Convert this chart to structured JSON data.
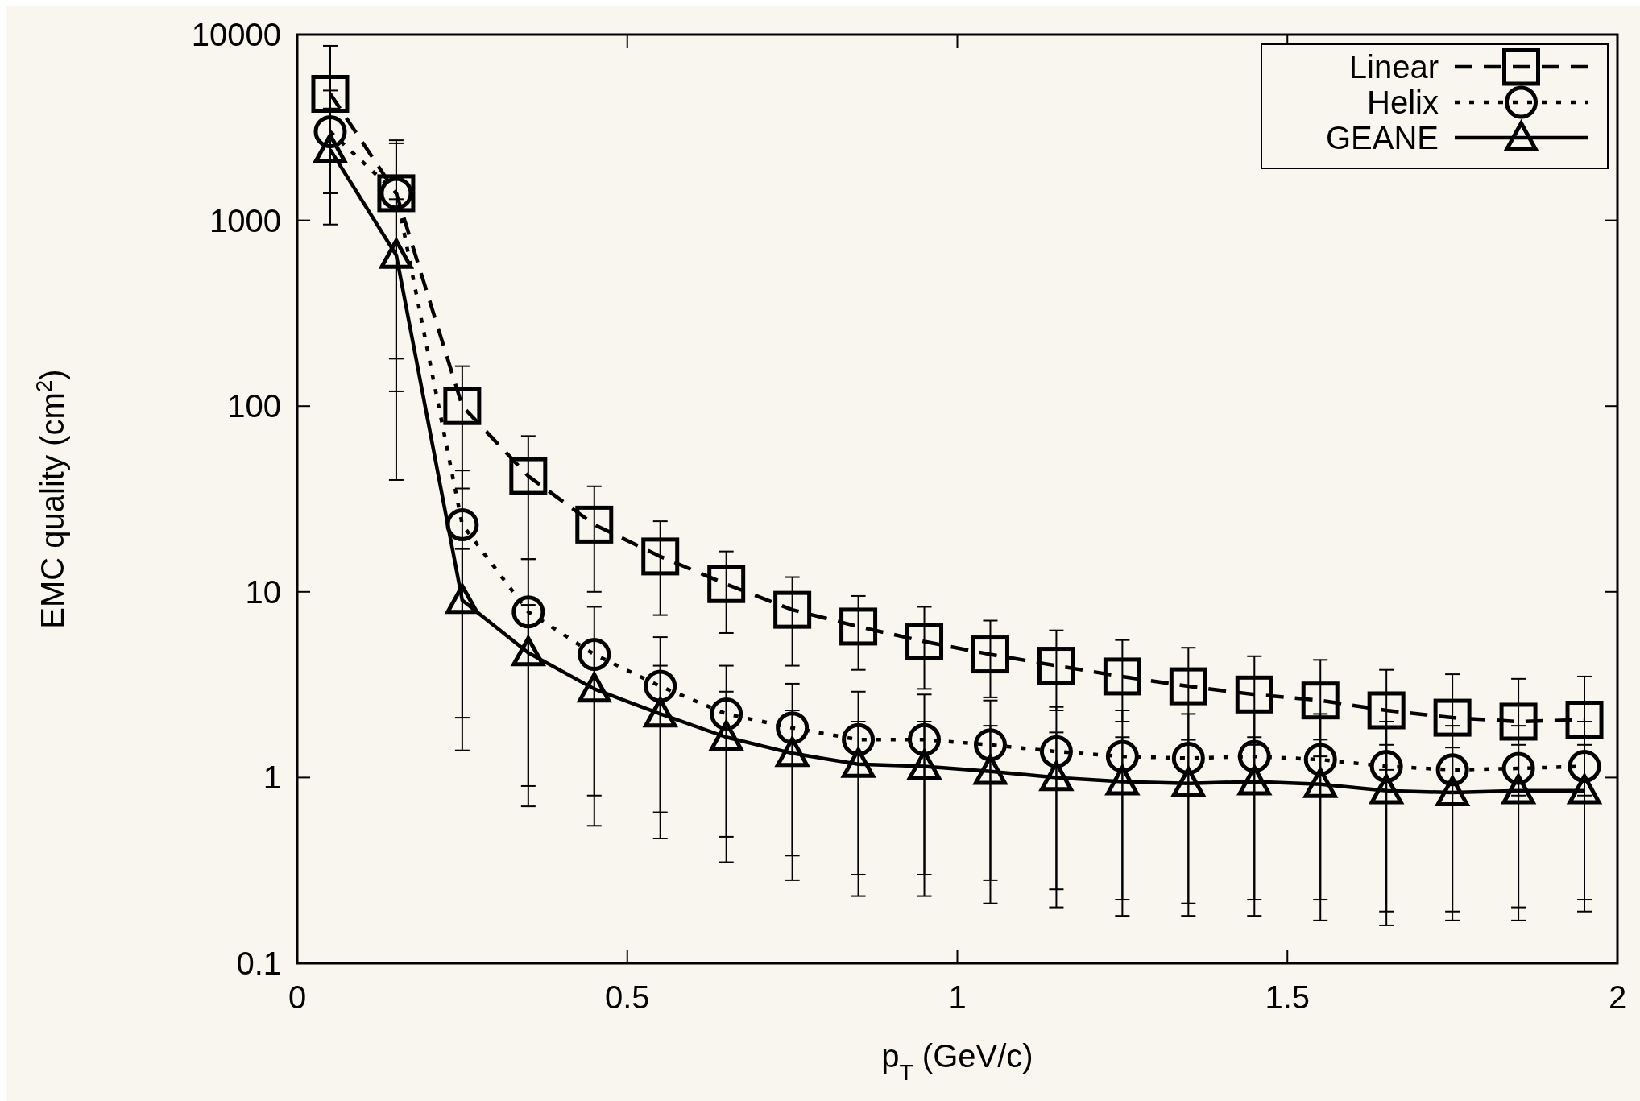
{
  "chart_data": {
    "type": "line",
    "xlabel": "p$_{T}$ (GeV/c)",
    "ylabel": "EMC quality (cm$^{2}$)",
    "x": [
      0.05,
      0.15,
      0.25,
      0.35,
      0.45,
      0.55,
      0.65,
      0.75,
      0.85,
      0.95,
      1.05,
      1.15,
      1.25,
      1.35,
      1.45,
      1.55,
      1.65,
      1.75,
      1.85,
      1.95
    ],
    "xlim": [
      0,
      2
    ],
    "xticks": [
      0,
      0.5,
      1,
      1.5,
      2
    ],
    "ylim": [
      0.1,
      10000
    ],
    "yticks": [
      0.1,
      1,
      10,
      100,
      1000,
      10000
    ],
    "log": "y",
    "legend": "top right",
    "grid": false,
    "series": [
      {
        "name": "Linear",
        "color": "#000000",
        "marker": "square",
        "line_style": "dashed",
        "values": [
          4800,
          1400,
          100,
          42,
          23,
          15.5,
          11,
          8,
          6.5,
          5.4,
          4.6,
          4.0,
          3.5,
          3.1,
          2.8,
          2.6,
          2.3,
          2.1,
          2.0,
          2.05
        ],
        "errors": [
          [
            950,
            8700
          ],
          [
            120,
            2700
          ],
          [
            36,
            164
          ],
          [
            15,
            69
          ],
          [
            10,
            37
          ],
          [
            7.5,
            24
          ],
          [
            6,
            16.5
          ],
          [
            4,
            12
          ],
          [
            3.8,
            9.5
          ],
          [
            3.0,
            8.3
          ],
          [
            2.7,
            7
          ],
          [
            2.3,
            6.2
          ],
          [
            2,
            5.5
          ],
          [
            1.6,
            5
          ],
          [
            1.5,
            4.5
          ],
          [
            1.3,
            4.3
          ],
          [
            1.1,
            3.8
          ],
          [
            0.95,
            3.6
          ],
          [
            0.8,
            3.4
          ],
          [
            0.8,
            3.5
          ]
        ]
      },
      {
        "name": "Helix",
        "color": "#000000",
        "marker": "circle",
        "line_style": "dotted",
        "values": [
          3000,
          1400,
          23,
          7.8,
          4.6,
          3.1,
          2.2,
          1.85,
          1.6,
          1.6,
          1.5,
          1.38,
          1.3,
          1.27,
          1.3,
          1.25,
          1.15,
          1.1,
          1.12,
          1.15
        ],
        "errors": [
          [
            1400,
            5000
          ],
          [
            180,
            2600
          ],
          [
            2.1,
            45
          ],
          [
            0.7,
            15
          ],
          [
            0.55,
            8.3
          ],
          [
            0.47,
            5.7
          ],
          [
            0.35,
            4
          ],
          [
            0.28,
            3.2
          ],
          [
            0.23,
            2.9
          ],
          [
            0.23,
            2.8
          ],
          [
            0.21,
            2.6
          ],
          [
            0.2,
            2.4
          ],
          [
            0.18,
            2.3
          ],
          [
            0.18,
            2.2
          ],
          [
            0.18,
            2.3
          ],
          [
            0.17,
            2.2
          ],
          [
            0.16,
            2.0
          ],
          [
            0.17,
            1.9
          ],
          [
            0.17,
            1.9
          ],
          [
            0.19,
            2.0
          ]
        ]
      },
      {
        "name": "GEANE",
        "color": "#000000",
        "marker": "triangle",
        "line_style": "solid",
        "values": [
          2400,
          650,
          9,
          4.7,
          3.0,
          2.2,
          1.65,
          1.35,
          1.18,
          1.15,
          1.08,
          1.0,
          0.95,
          0.93,
          0.95,
          0.92,
          0.85,
          0.83,
          0.85,
          0.85
        ],
        "errors": [
          [
            1400,
            4000
          ],
          [
            40,
            1300
          ],
          [
            1.4,
            17
          ],
          [
            0.9,
            8.5
          ],
          [
            0.8,
            5.5
          ],
          [
            0.65,
            4
          ],
          [
            0.48,
            2.9
          ],
          [
            0.38,
            2.3
          ],
          [
            0.3,
            2.0
          ],
          [
            0.3,
            2.0
          ],
          [
            0.28,
            1.9
          ],
          [
            0.25,
            1.75
          ],
          [
            0.22,
            1.65
          ],
          [
            0.21,
            1.6
          ],
          [
            0.22,
            1.65
          ],
          [
            0.22,
            1.6
          ],
          [
            0.19,
            1.5
          ],
          [
            0.19,
            1.45
          ],
          [
            0.2,
            1.5
          ],
          [
            0.22,
            1.5
          ]
        ]
      }
    ]
  }
}
